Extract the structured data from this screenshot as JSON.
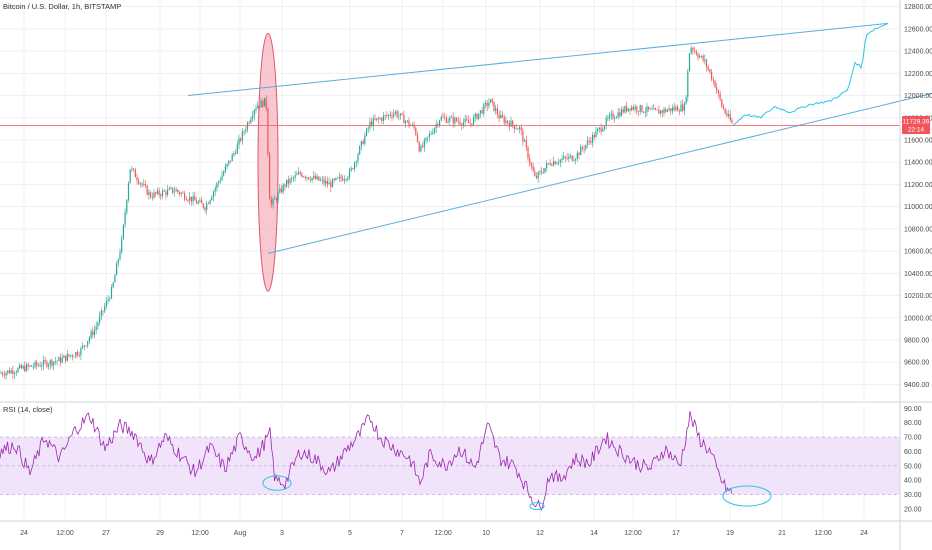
{
  "header": {
    "title": "Bitcoin / U.S. Dollar, 1h, BITSTAMP"
  },
  "price_badge": {
    "value": "11729.39",
    "countdown": "22:14"
  },
  "colors": {
    "up": "#26a69a",
    "down": "#ef5350",
    "trend": "#5aaee0",
    "forecast": "#29c5e6",
    "rsi_line": "#9c27b0",
    "rsi_band": "#f1e3f9",
    "price_line": "#f2545b",
    "ellipse_fill": "#f7b4c0",
    "ellipse_stroke": "#e0566a"
  },
  "chart_data": [
    {
      "type": "candlestick",
      "title": "Bitcoin / U.S. Dollar, 1h, BITSTAMP",
      "x_ticks": [
        "24",
        "12:00",
        "27",
        "29",
        "12:00",
        "Aug",
        "3",
        "5",
        "7",
        "12:00",
        "10",
        "12",
        "14",
        "12:00",
        "17",
        "19",
        "21",
        "12:00",
        "24"
      ],
      "y_ticks": [
        12800,
        12600,
        12400,
        12200,
        12000,
        11800,
        11600,
        11400,
        11200,
        11000,
        10800,
        10600,
        10400,
        10200,
        10000,
        9800,
        9600,
        9400
      ],
      "ylim": [
        9260,
        12860
      ],
      "grid": true,
      "last_price": 11729.39,
      "price_path_knots": [
        [
          0,
          9500
        ],
        [
          30,
          9560
        ],
        [
          60,
          9620
        ],
        [
          80,
          9700
        ],
        [
          95,
          9900
        ],
        [
          112,
          10250
        ],
        [
          122,
          10700
        ],
        [
          130,
          11350
        ],
        [
          150,
          11100
        ],
        [
          175,
          11150
        ],
        [
          205,
          11000
        ],
        [
          235,
          11500
        ],
        [
          255,
          11900
        ],
        [
          266,
          11950
        ],
        [
          270,
          11000
        ],
        [
          285,
          11200
        ],
        [
          300,
          11300
        ],
        [
          330,
          11200
        ],
        [
          350,
          11300
        ],
        [
          370,
          11750
        ],
        [
          395,
          11850
        ],
        [
          415,
          11700
        ],
        [
          420,
          11500
        ],
        [
          440,
          11800
        ],
        [
          470,
          11750
        ],
        [
          490,
          11950
        ],
        [
          500,
          11800
        ],
        [
          520,
          11700
        ],
        [
          535,
          11250
        ],
        [
          550,
          11400
        ],
        [
          575,
          11450
        ],
        [
          590,
          11600
        ],
        [
          610,
          11800
        ],
        [
          630,
          11900
        ],
        [
          655,
          11850
        ],
        [
          685,
          11900
        ],
        [
          690,
          12450
        ],
        [
          705,
          12300
        ],
        [
          715,
          12100
        ],
        [
          722,
          11900
        ],
        [
          733,
          11730
        ]
      ],
      "forecast_path_knots": [
        [
          733,
          11730
        ],
        [
          745,
          11830
        ],
        [
          760,
          11800
        ],
        [
          775,
          11900
        ],
        [
          790,
          11850
        ],
        [
          810,
          11920
        ],
        [
          830,
          11950
        ],
        [
          848,
          12050
        ],
        [
          855,
          12300
        ],
        [
          862,
          12250
        ],
        [
          866,
          12550
        ],
        [
          875,
          12600
        ],
        [
          888,
          12650
        ]
      ],
      "ellipse": {
        "x_center": 268,
        "y_center": 11400,
        "x_radius": 10,
        "y_radius": 1160
      },
      "trendlines": [
        {
          "name": "upper",
          "points": [
            [
              188,
              12000
            ],
            [
              888,
              12650
            ]
          ]
        },
        {
          "name": "lower",
          "points": [
            [
              268,
              10580
            ],
            [
              932,
              12020
            ]
          ]
        }
      ]
    },
    {
      "type": "line",
      "title": "RSI (14, close)",
      "y_ticks": [
        90,
        80,
        70,
        60,
        50,
        40,
        30,
        20
      ],
      "ylim": [
        13,
        93
      ],
      "band": [
        30,
        70
      ],
      "reference_lines": [
        30,
        50,
        70
      ],
      "rsi_knots": [
        [
          0,
          60
        ],
        [
          15,
          65
        ],
        [
          30,
          45
        ],
        [
          45,
          70
        ],
        [
          60,
          55
        ],
        [
          75,
          75
        ],
        [
          90,
          85
        ],
        [
          105,
          62
        ],
        [
          120,
          78
        ],
        [
          135,
          72
        ],
        [
          150,
          52
        ],
        [
          165,
          70
        ],
        [
          180,
          58
        ],
        [
          195,
          45
        ],
        [
          210,
          63
        ],
        [
          225,
          48
        ],
        [
          240,
          70
        ],
        [
          255,
          55
        ],
        [
          270,
          72
        ],
        [
          275,
          40
        ],
        [
          285,
          38
        ],
        [
          300,
          60
        ],
        [
          315,
          55
        ],
        [
          330,
          45
        ],
        [
          345,
          60
        ],
        [
          360,
          72
        ],
        [
          370,
          84
        ],
        [
          380,
          70
        ],
        [
          395,
          62
        ],
        [
          410,
          55
        ],
        [
          420,
          38
        ],
        [
          430,
          58
        ],
        [
          445,
          50
        ],
        [
          460,
          62
        ],
        [
          475,
          48
        ],
        [
          488,
          78
        ],
        [
          500,
          55
        ],
        [
          515,
          50
        ],
        [
          530,
          30
        ],
        [
          540,
          20
        ],
        [
          550,
          45
        ],
        [
          560,
          40
        ],
        [
          575,
          55
        ],
        [
          590,
          52
        ],
        [
          605,
          70
        ],
        [
          620,
          60
        ],
        [
          635,
          52
        ],
        [
          650,
          48
        ],
        [
          665,
          62
        ],
        [
          680,
          50
        ],
        [
          690,
          85
        ],
        [
          700,
          68
        ],
        [
          710,
          60
        ],
        [
          718,
          45
        ],
        [
          725,
          35
        ],
        [
          733,
          30
        ]
      ],
      "annotations": [
        {
          "name": "circle-1",
          "x_center": 277,
          "y_center": 38,
          "x_radius": 14,
          "y_radius": 5
        },
        {
          "name": "circle-2",
          "x_center": 537,
          "y_center": 22,
          "x_radius": 7,
          "y_radius": 2.5
        },
        {
          "name": "circle-3",
          "x_center": 747,
          "y_center": 29,
          "x_radius": 24,
          "y_radius": 7
        }
      ]
    }
  ]
}
